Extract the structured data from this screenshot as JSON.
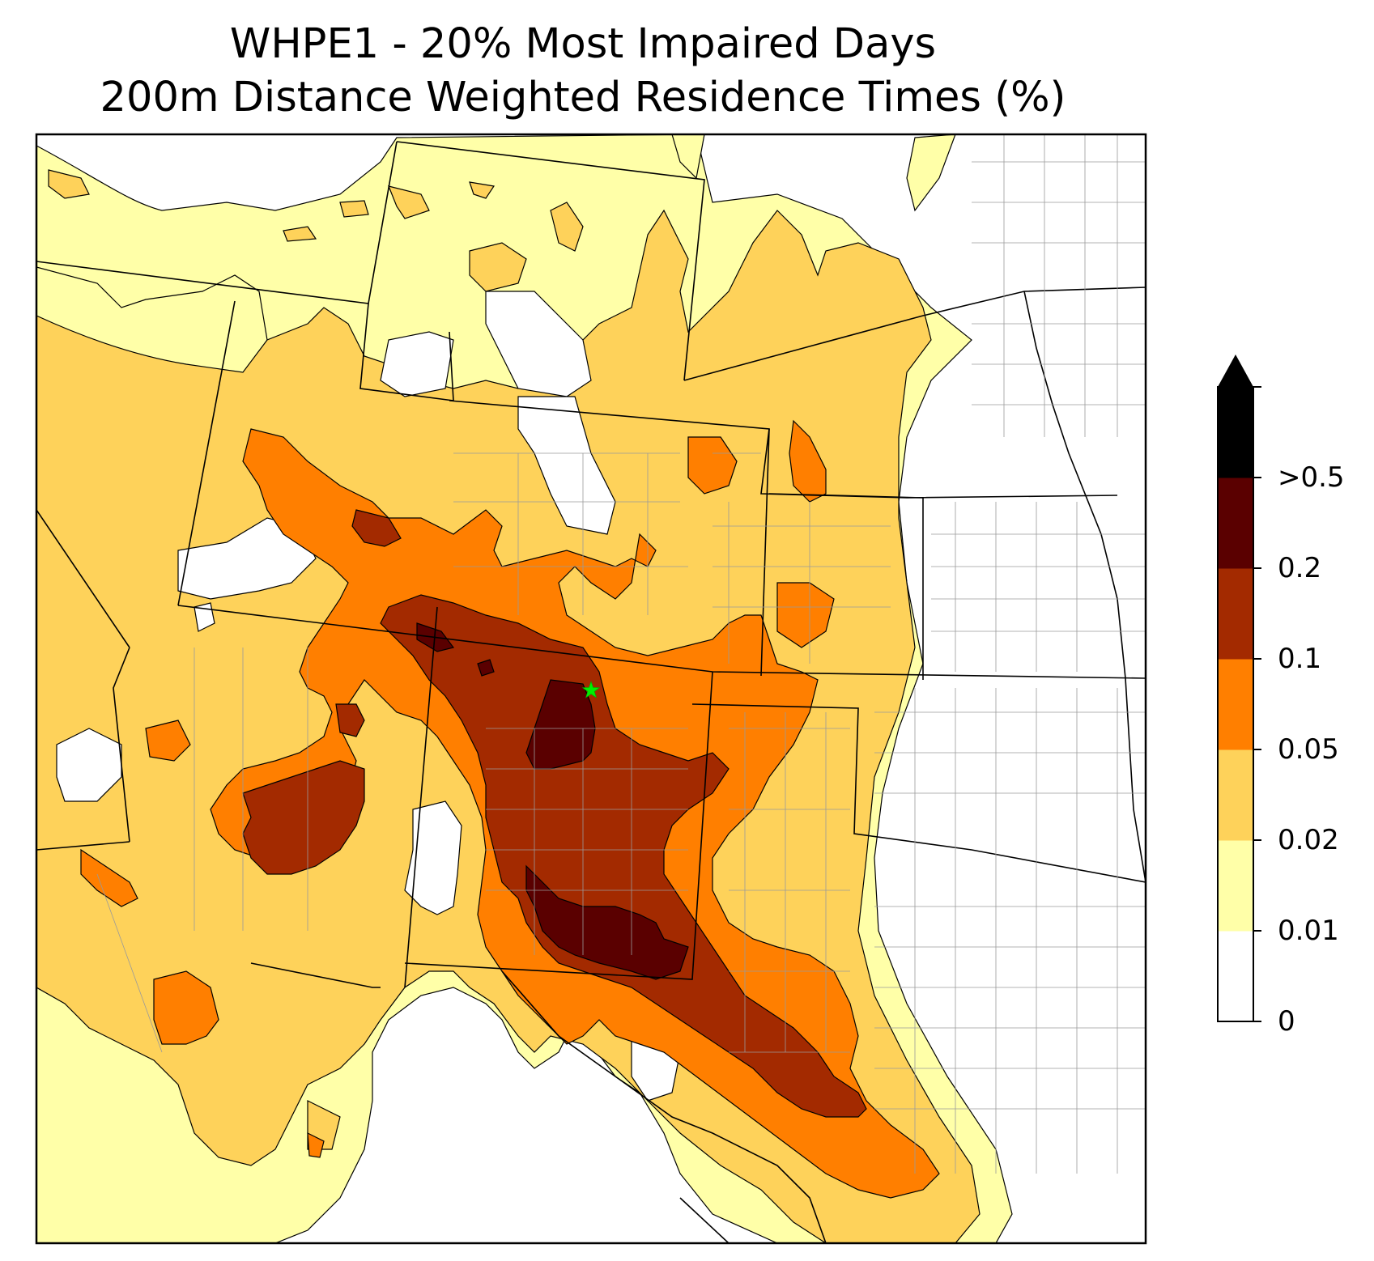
{
  "title_line1": "WHPE1 - 20% Most Impaired Days",
  "title_line2": "200m Distance Weighted Residence Times (%)",
  "colorbar": {
    "labels": [
      "0",
      "0.01",
      "0.02",
      "0.05",
      "0.1",
      "0.2",
      ">0.5"
    ],
    "bins": [
      {
        "range": "0-0.01",
        "color": "#ffffff"
      },
      {
        "range": "0.01-0.02",
        "color": "#ffffa8"
      },
      {
        "range": "0.02-0.05",
        "color": "#fed25a"
      },
      {
        "range": "0.05-0.1",
        "color": "#ff7f00"
      },
      {
        "range": "0.1-0.2",
        "color": "#a32a00"
      },
      {
        "range": "0.2-0.5",
        "color": "#5a0000"
      },
      {
        "range": ">0.5",
        "color": "#000000"
      }
    ]
  },
  "site_marker": {
    "symbol": "star",
    "color": "#00ee00"
  }
}
